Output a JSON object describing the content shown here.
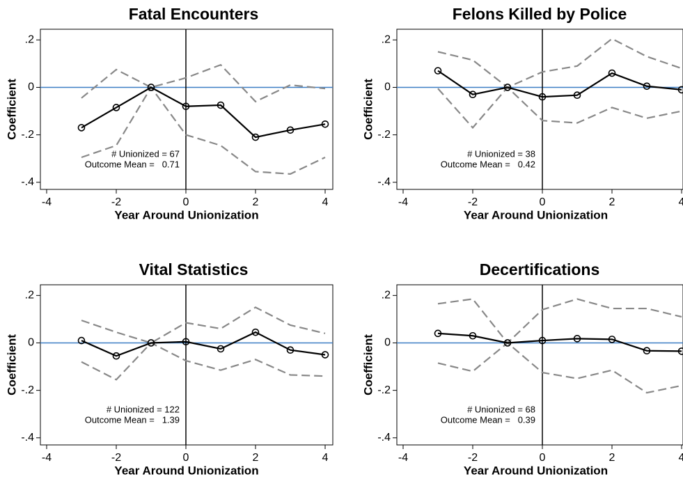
{
  "chart_data": [
    {
      "type": "line",
      "title": "Fatal Encounters",
      "xlabel": "Year Around Unionization",
      "ylabel": "Coefficient",
      "x": [
        -3,
        -2,
        -1,
        0,
        1,
        2,
        3,
        4
      ],
      "series": [
        {
          "color": "#888888",
          "dashed": true,
          "markers": false,
          "values": [
            -0.045,
            0.075,
            0,
            0.04,
            0.095,
            -0.06,
            0.01,
            -0.005
          ]
        },
        {
          "color": "#888888",
          "dashed": true,
          "markers": false,
          "values": [
            -0.295,
            -0.245,
            0,
            -0.2,
            -0.245,
            -0.355,
            -0.365,
            -0.295
          ]
        },
        {
          "color": "#000000",
          "dashed": false,
          "markers": true,
          "values": [
            -0.17,
            -0.085,
            0,
            -0.08,
            -0.075,
            -0.21,
            -0.18,
            -0.155
          ]
        }
      ],
      "annotations": [
        "# Unionized = 67",
        "Outcome Mean =   0.71"
      ],
      "hline": 0,
      "hline_color": "#3b7dc4",
      "vline": 0,
      "xlim": [
        -4.18,
        4.22
      ],
      "ylim": [
        -0.43,
        0.245
      ],
      "xticks": [
        -4,
        -2,
        0,
        2,
        4
      ],
      "yticks": [
        {
          "value": 0.2,
          "label": ".2"
        },
        0,
        {
          "value": -0.2,
          "label": "-.2"
        },
        {
          "value": -0.4,
          "label": "-.4"
        }
      ]
    },
    {
      "type": "line",
      "title": "Felons Killed by Police",
      "xlabel": "Year Around Unionization",
      "ylabel": "Coefficient",
      "x": [
        -3,
        -2,
        -1,
        0,
        1,
        2,
        3,
        4
      ],
      "series": [
        {
          "color": "#888888",
          "dashed": true,
          "markers": false,
          "values": [
            0.15,
            0.115,
            0,
            0.065,
            0.09,
            0.205,
            0.13,
            0.08
          ]
        },
        {
          "color": "#888888",
          "dashed": true,
          "markers": false,
          "values": [
            -0.005,
            -0.17,
            0,
            -0.14,
            -0.15,
            -0.085,
            -0.13,
            -0.1
          ]
        },
        {
          "color": "#000000",
          "dashed": false,
          "markers": true,
          "values": [
            0.07,
            -0.03,
            0,
            -0.04,
            -0.033,
            0.06,
            0.005,
            -0.01
          ]
        }
      ],
      "annotations": [
        "# Unionized = 38",
        "Outcome Mean =   0.42"
      ],
      "hline": 0,
      "hline_color": "#3b7dc4",
      "vline": 0,
      "xlim": [
        -4.18,
        4.04
      ],
      "ylim": [
        -0.43,
        0.245
      ],
      "xticks": [
        -4,
        -2,
        0,
        2,
        4
      ],
      "yticks": [
        {
          "value": 0.2,
          "label": ".2"
        },
        0,
        {
          "value": -0.2,
          "label": "-.2"
        },
        {
          "value": -0.4,
          "label": "-.4"
        }
      ]
    },
    {
      "type": "line",
      "title": "Vital Statistics",
      "xlabel": "Year Around Unionization",
      "ylabel": "Coefficient",
      "x": [
        -3,
        -2,
        -1,
        0,
        1,
        2,
        3,
        4
      ],
      "series": [
        {
          "color": "#888888",
          "dashed": true,
          "markers": false,
          "values": [
            0.095,
            0.045,
            0,
            0.085,
            0.06,
            0.15,
            0.075,
            0.04
          ]
        },
        {
          "color": "#888888",
          "dashed": true,
          "markers": false,
          "values": [
            -0.08,
            -0.155,
            0,
            -0.075,
            -0.115,
            -0.07,
            -0.135,
            -0.14
          ]
        },
        {
          "color": "#000000",
          "dashed": false,
          "markers": true,
          "values": [
            0.01,
            -0.055,
            0,
            0.005,
            -0.025,
            0.045,
            -0.03,
            -0.05
          ]
        }
      ],
      "annotations": [
        "# Unionized = 122",
        "Outcome Mean =   1.39"
      ],
      "hline": 0,
      "hline_color": "#3b7dc4",
      "vline": 0,
      "xlim": [
        -4.18,
        4.22
      ],
      "ylim": [
        -0.43,
        0.245
      ],
      "xticks": [
        -4,
        -2,
        0,
        2,
        4
      ],
      "yticks": [
        {
          "value": 0.2,
          "label": ".2"
        },
        0,
        {
          "value": -0.2,
          "label": "-.2"
        },
        {
          "value": -0.4,
          "label": "-.4"
        }
      ]
    },
    {
      "type": "line",
      "title": "Decertifications",
      "xlabel": "Year Around Unionization",
      "ylabel": "Coefficient",
      "x": [
        -3,
        -2,
        -1,
        0,
        1,
        2,
        3,
        4
      ],
      "series": [
        {
          "color": "#888888",
          "dashed": true,
          "markers": false,
          "values": [
            0.165,
            0.185,
            0,
            0.14,
            0.185,
            0.145,
            0.145,
            0.11
          ]
        },
        {
          "color": "#888888",
          "dashed": true,
          "markers": false,
          "values": [
            -0.085,
            -0.12,
            0,
            -0.125,
            -0.15,
            -0.115,
            -0.21,
            -0.18
          ]
        },
        {
          "color": "#000000",
          "dashed": false,
          "markers": true,
          "values": [
            0.04,
            0.03,
            0,
            0.01,
            0.018,
            0.015,
            -0.033,
            -0.035
          ]
        }
      ],
      "annotations": [
        "# Unionized = 68",
        "Outcome Mean =   0.39"
      ],
      "hline": 0,
      "hline_color": "#3b7dc4",
      "vline": 0,
      "xlim": [
        -4.18,
        4.04
      ],
      "ylim": [
        -0.43,
        0.245
      ],
      "xticks": [
        -4,
        -2,
        0,
        2,
        4
      ],
      "yticks": [
        {
          "value": 0.2,
          "label": ".2"
        },
        0,
        {
          "value": -0.2,
          "label": "-.2"
        },
        {
          "value": -0.4,
          "label": "-.4"
        }
      ]
    }
  ]
}
